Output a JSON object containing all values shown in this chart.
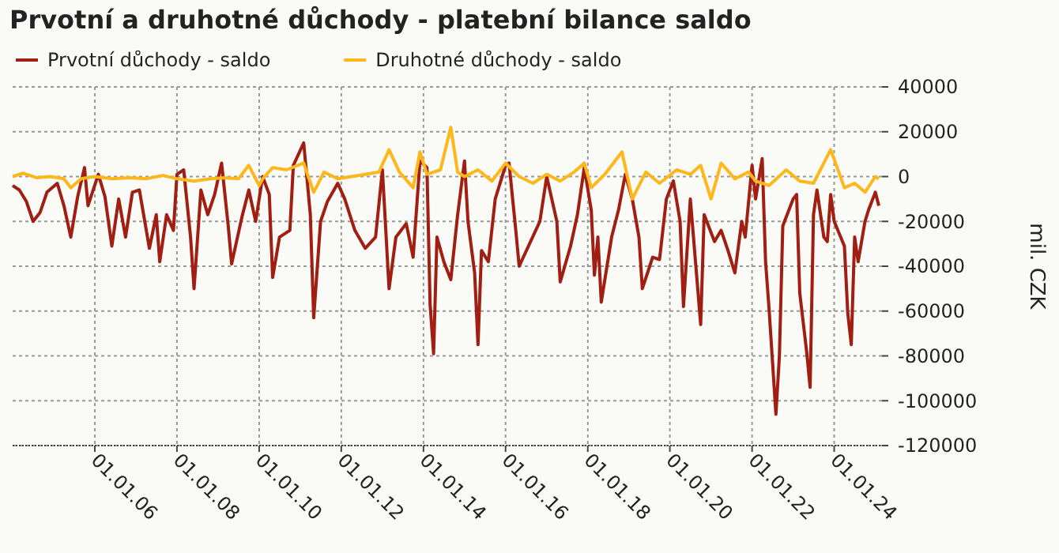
{
  "chart_data": {
    "type": "line",
    "title": "Prvotní a druhotné důchody - platební bilance saldo",
    "ylabel": "mil. CZK",
    "legend": "top left",
    "grid": true,
    "marker": "none",
    "line_style": "solid",
    "xlim": [
      "2004-01-01",
      "2025-03-01"
    ],
    "xticks": [
      {
        "value": "2006-01-01",
        "label": "01.01.06"
      },
      {
        "value": "2008-01-01",
        "label": "01.01.08"
      },
      {
        "value": "2010-01-01",
        "label": "01.01.10"
      },
      {
        "value": "2012-01-01",
        "label": "01.01.12"
      },
      {
        "value": "2014-01-01",
        "label": "01.01.14"
      },
      {
        "value": "2016-01-01",
        "label": "01.01.16"
      },
      {
        "value": "2018-01-01",
        "label": "01.01.18"
      },
      {
        "value": "2020-01-01",
        "label": "01.01.20"
      },
      {
        "value": "2022-01-01",
        "label": "01.01.22"
      },
      {
        "value": "2024-01-01",
        "label": "01.01.24"
      }
    ],
    "ylim": [
      -120000,
      40000
    ],
    "yticks": [
      -120000,
      -100000,
      -80000,
      -60000,
      -40000,
      -20000,
      0,
      20000,
      40000
    ],
    "series": [
      {
        "name": "Prvotní důchody - saldo",
        "color": "#a01e12",
        "x": [
          "2004-01",
          "2004-03",
          "2004-05",
          "2004-07",
          "2004-09",
          "2004-11",
          "2005-02",
          "2005-04",
          "2005-06",
          "2005-08",
          "2005-10",
          "2005-11",
          "2006-02",
          "2006-04",
          "2006-06",
          "2006-08",
          "2006-10",
          "2006-12",
          "2007-02",
          "2007-05",
          "2007-07",
          "2007-08",
          "2007-10",
          "2007-12",
          "2008-01",
          "2008-03",
          "2008-05",
          "2008-06",
          "2008-08",
          "2008-10",
          "2008-12",
          "2009-02",
          "2009-04",
          "2009-05",
          "2009-08",
          "2009-10",
          "2009-12",
          "2010-02",
          "2010-04",
          "2010-05",
          "2010-07",
          "2010-10",
          "2010-11",
          "2011-02",
          "2011-04",
          "2011-05",
          "2011-07",
          "2011-09",
          "2011-12",
          "2012-02",
          "2012-05",
          "2012-08",
          "2012-11",
          "2013-01",
          "2013-03",
          "2013-05",
          "2013-08",
          "2013-10",
          "2013-12",
          "2014-02",
          "2014-03",
          "2014-04",
          "2014-05",
          "2014-07",
          "2014-09",
          "2014-11",
          "2015-01",
          "2015-02",
          "2015-04",
          "2015-05",
          "2015-06",
          "2015-08",
          "2015-10",
          "2016-01",
          "2016-02",
          "2016-04",
          "2016-05",
          "2016-08",
          "2016-11",
          "2017-01",
          "2017-04",
          "2017-05",
          "2017-08",
          "2017-10",
          "2017-12",
          "2018-02",
          "2018-03",
          "2018-04",
          "2018-05",
          "2018-08",
          "2018-10",
          "2018-12",
          "2019-02",
          "2019-04",
          "2019-05",
          "2019-08",
          "2019-10",
          "2019-12",
          "2020-02",
          "2020-04",
          "2020-05",
          "2020-07",
          "2020-10",
          "2020-11",
          "2021-02",
          "2021-04",
          "2021-06",
          "2021-08",
          "2021-10",
          "2021-11",
          "2022-01",
          "2022-02",
          "2022-04",
          "2022-05",
          "2022-06",
          "2022-08",
          "2022-09",
          "2022-10",
          "2023-01",
          "2023-02",
          "2023-03",
          "2023-05",
          "2023-06",
          "2023-07",
          "2023-08",
          "2023-10",
          "2023-11",
          "2023-12",
          "2024-01",
          "2024-04",
          "2024-05",
          "2024-06",
          "2024-07",
          "2024-08",
          "2024-10",
          "2024-11",
          "2025-01",
          "2025-02"
        ],
        "values": [
          -4000,
          -6000,
          -11000,
          -20000,
          -16000,
          -7000,
          -3000,
          -13000,
          -27000,
          -9000,
          4000,
          -13000,
          1000,
          -9000,
          -31000,
          -10000,
          -27000,
          -7000,
          -6000,
          -32000,
          -17000,
          -38000,
          -17000,
          -24000,
          1000,
          3000,
          -27000,
          -50000,
          -6000,
          -17000,
          -8000,
          6000,
          -22000,
          -39000,
          -18000,
          -6000,
          -20000,
          0,
          -8000,
          -45000,
          -27000,
          -24000,
          5000,
          15000,
          -17000,
          -63000,
          -20000,
          -11000,
          -3000,
          -10000,
          -24000,
          -32000,
          -27000,
          3000,
          -50000,
          -27000,
          -21000,
          -36000,
          7000,
          4000,
          -57000,
          -79000,
          -27000,
          -38000,
          -46000,
          -17000,
          7000,
          -20000,
          -43000,
          -75000,
          -33000,
          -38000,
          -10000,
          5000,
          6000,
          -24000,
          -40000,
          -30000,
          -20000,
          0,
          -20000,
          -47000,
          -31000,
          -17000,
          4000,
          -15000,
          -44000,
          -27000,
          -56000,
          -27000,
          -15000,
          1000,
          -10000,
          -27000,
          -50000,
          -36000,
          -37000,
          -10000,
          -2000,
          -20000,
          -58000,
          -10000,
          -66000,
          -17000,
          -29000,
          -24000,
          -33000,
          -43000,
          -20000,
          -27000,
          5000,
          -10000,
          8000,
          -38000,
          -59000,
          -106000,
          -80000,
          -22000,
          -10000,
          -8000,
          -52000,
          -78000,
          -94000,
          -17000,
          -6000,
          -27000,
          -29000,
          -8000,
          -20000,
          -31000,
          -61000,
          -75000,
          -27000,
          -38000,
          -20000,
          -15000,
          -7000,
          -13000
        ]
      },
      {
        "name": "Druhotné důchody - saldo",
        "color": "#ffb71b",
        "x": [
          "2004-01",
          "2004-04",
          "2004-08",
          "2004-12",
          "2005-04",
          "2005-06",
          "2005-09",
          "2006-01",
          "2006-06",
          "2006-11",
          "2007-04",
          "2007-09",
          "2008-01",
          "2008-06",
          "2008-11",
          "2009-03",
          "2009-07",
          "2009-10",
          "2010-01",
          "2010-02",
          "2010-05",
          "2010-09",
          "2011-02",
          "2011-05",
          "2011-08",
          "2011-12",
          "2012-04",
          "2012-08",
          "2012-12",
          "2013-03",
          "2013-06",
          "2013-10",
          "2013-12",
          "2014-02",
          "2014-06",
          "2014-09",
          "2014-11",
          "2015-01",
          "2015-05",
          "2015-09",
          "2016-01",
          "2016-05",
          "2016-09",
          "2017-01",
          "2017-05",
          "2017-09",
          "2017-12",
          "2018-02",
          "2018-06",
          "2018-11",
          "2019-02",
          "2019-06",
          "2019-10",
          "2020-03",
          "2020-07",
          "2020-10",
          "2021-01",
          "2021-04",
          "2021-08",
          "2021-12",
          "2022-02",
          "2022-06",
          "2022-11",
          "2023-03",
          "2023-07",
          "2023-12",
          "2024-04",
          "2024-07",
          "2024-10",
          "2025-01",
          "2025-02"
        ],
        "values": [
          0,
          1500,
          -500,
          0,
          -1000,
          -5000,
          -1000,
          0,
          -1000,
          -500,
          -1000,
          500,
          -1000,
          -2000,
          -1000,
          -500,
          -1000,
          5000,
          -4000,
          -1000,
          4000,
          3000,
          6000,
          -7000,
          2000,
          -1000,
          0,
          1000,
          2000,
          12000,
          2000,
          -5000,
          11000,
          1000,
          3000,
          22000,
          2000,
          0,
          3000,
          -2000,
          6000,
          0,
          -3000,
          1000,
          -2000,
          2000,
          6000,
          -5000,
          1000,
          11000,
          -10000,
          2000,
          -3000,
          3000,
          1000,
          5000,
          -10000,
          6000,
          -1000,
          2000,
          -2000,
          -4000,
          3000,
          -2000,
          -3000,
          12000,
          -5000,
          -3000,
          -7000,
          0,
          -1000
        ]
      }
    ]
  }
}
